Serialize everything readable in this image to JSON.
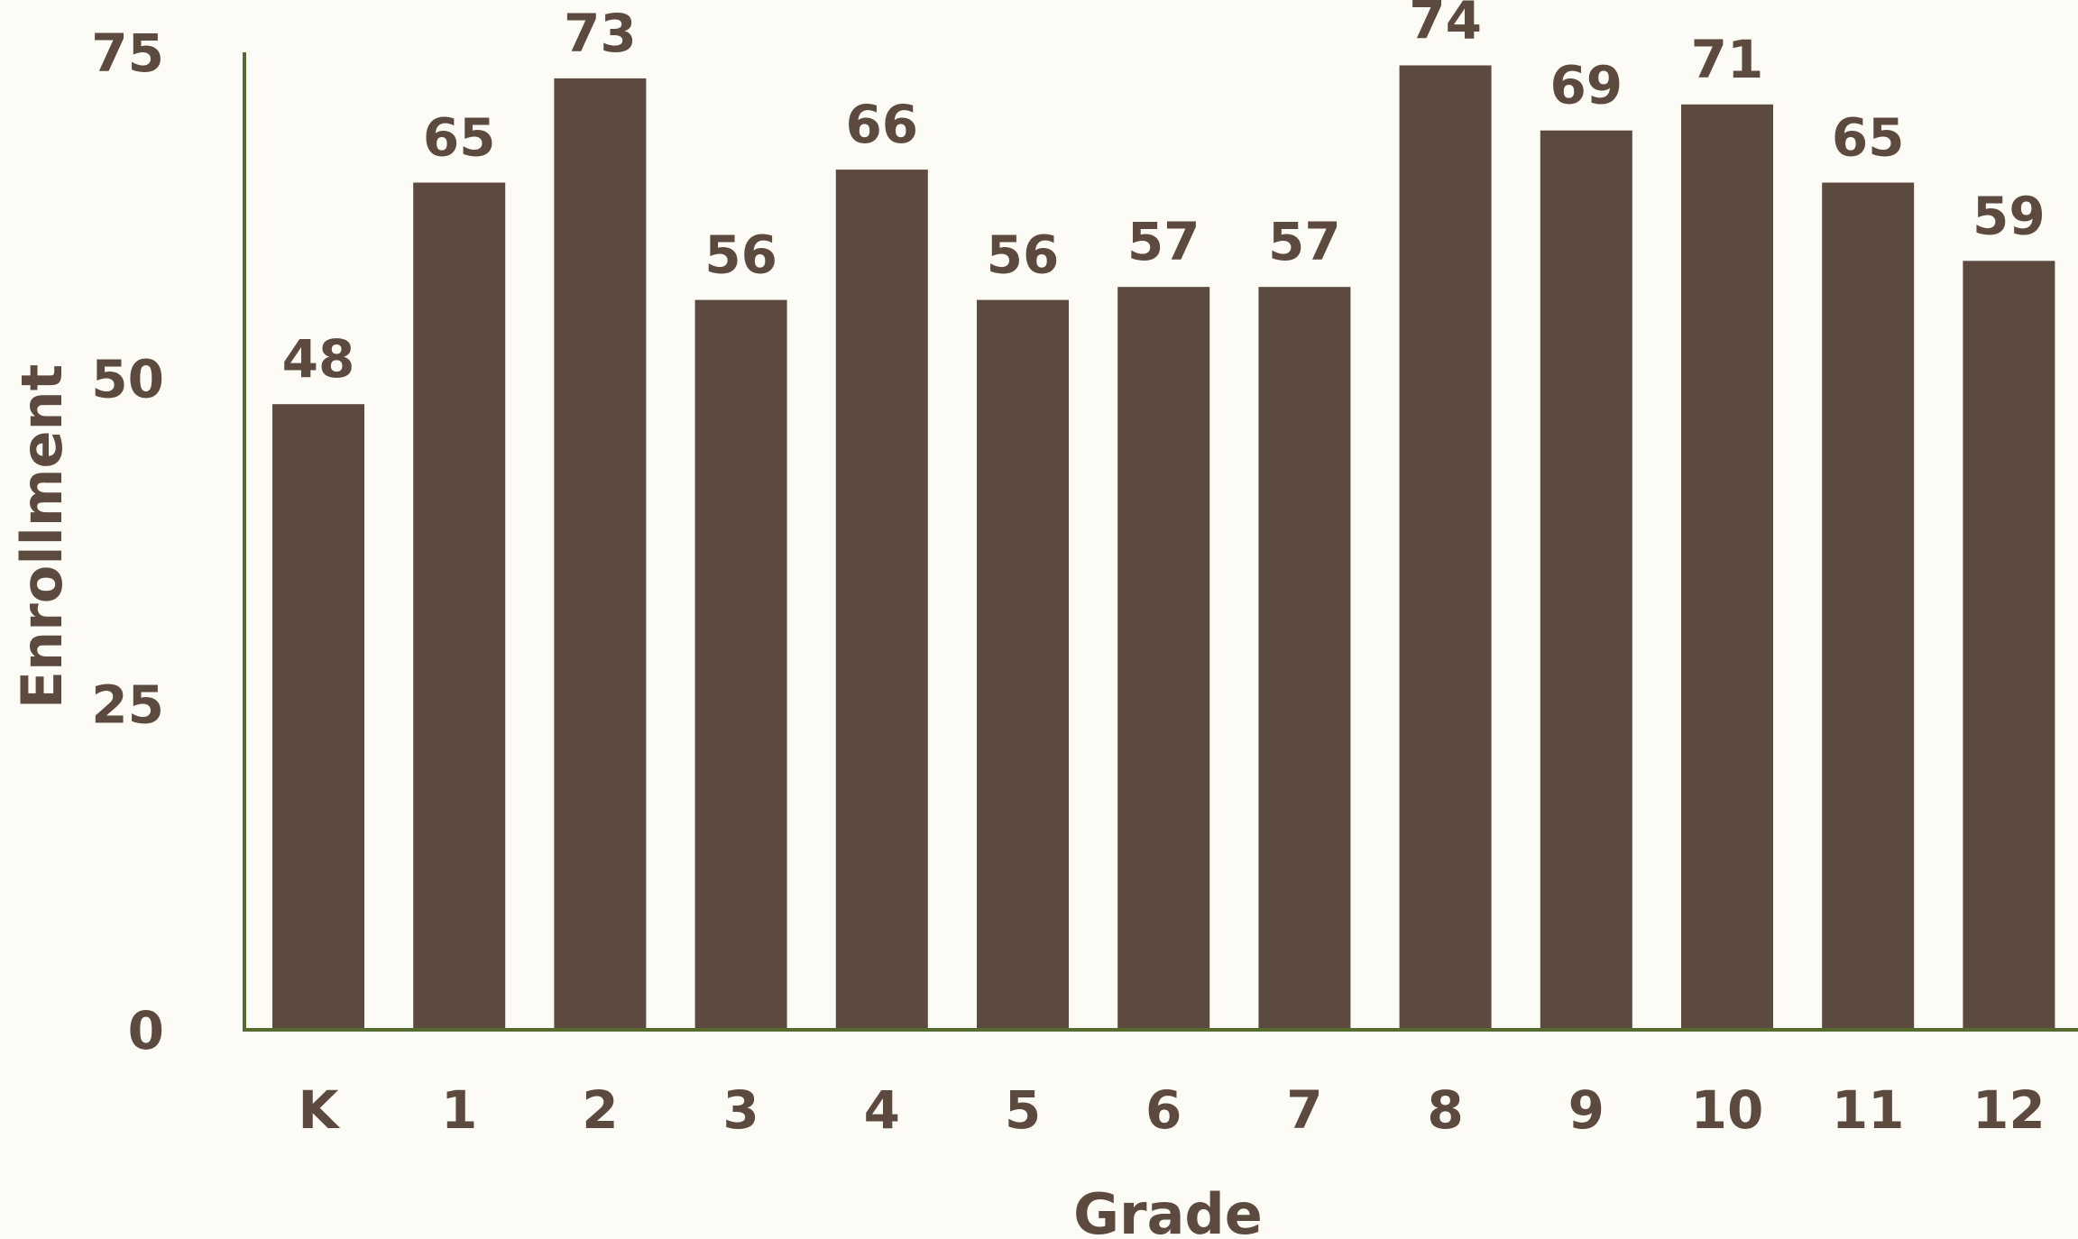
{
  "chart_data": {
    "type": "bar",
    "title": "",
    "xlabel": "Grade",
    "ylabel": "Enrollment",
    "categories": [
      "K",
      "1",
      "2",
      "3",
      "4",
      "5",
      "6",
      "7",
      "8",
      "9",
      "10",
      "11",
      "12"
    ],
    "values": [
      48,
      65,
      73,
      56,
      66,
      56,
      57,
      57,
      74,
      69,
      71,
      65,
      59
    ],
    "ylim": [
      0,
      75
    ],
    "yticks": [
      "0",
      "25",
      "50",
      "75"
    ],
    "grid": false,
    "legend": "none",
    "colors": {
      "bar": "#5d4a3e",
      "axis": "#556b2f",
      "text": "#5d4a3e",
      "background": "#fcfbf6"
    }
  }
}
